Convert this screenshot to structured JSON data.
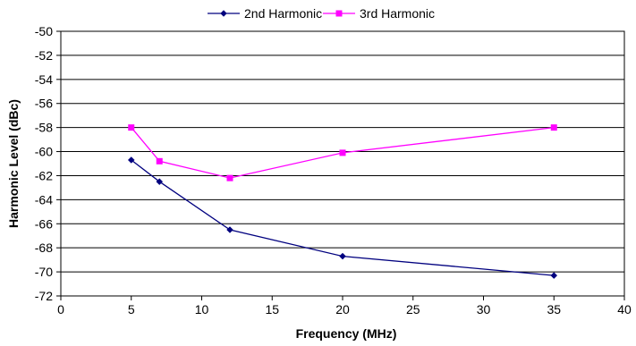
{
  "chart_data": {
    "type": "line",
    "xlabel": "Frequency (MHz)",
    "ylabel": "Harmonic Level (dBc)",
    "xlim": [
      0,
      40
    ],
    "ylim": [
      -72,
      -50
    ],
    "x_ticks": [
      "0",
      "5",
      "10",
      "15",
      "20",
      "25",
      "30",
      "35",
      "40"
    ],
    "y_ticks": [
      "-50",
      "-52",
      "-54",
      "-56",
      "-58",
      "-60",
      "-62",
      "-64",
      "-66",
      "-68",
      "-70",
      "-72"
    ],
    "grid": "horizontal",
    "legend_position": "top-center",
    "series": [
      {
        "name": "2nd Harmonic",
        "color": "#00007F",
        "marker": "diamond",
        "x": [
          5,
          7,
          12,
          20,
          35
        ],
        "y": [
          -60.7,
          -62.5,
          -66.5,
          -68.7,
          -70.3
        ]
      },
      {
        "name": "3rd Harmonic",
        "color": "#FF00FF",
        "marker": "square",
        "x": [
          5,
          7,
          12,
          20,
          35
        ],
        "y": [
          -58.0,
          -60.8,
          -62.2,
          -60.1,
          -58.0
        ]
      }
    ]
  }
}
